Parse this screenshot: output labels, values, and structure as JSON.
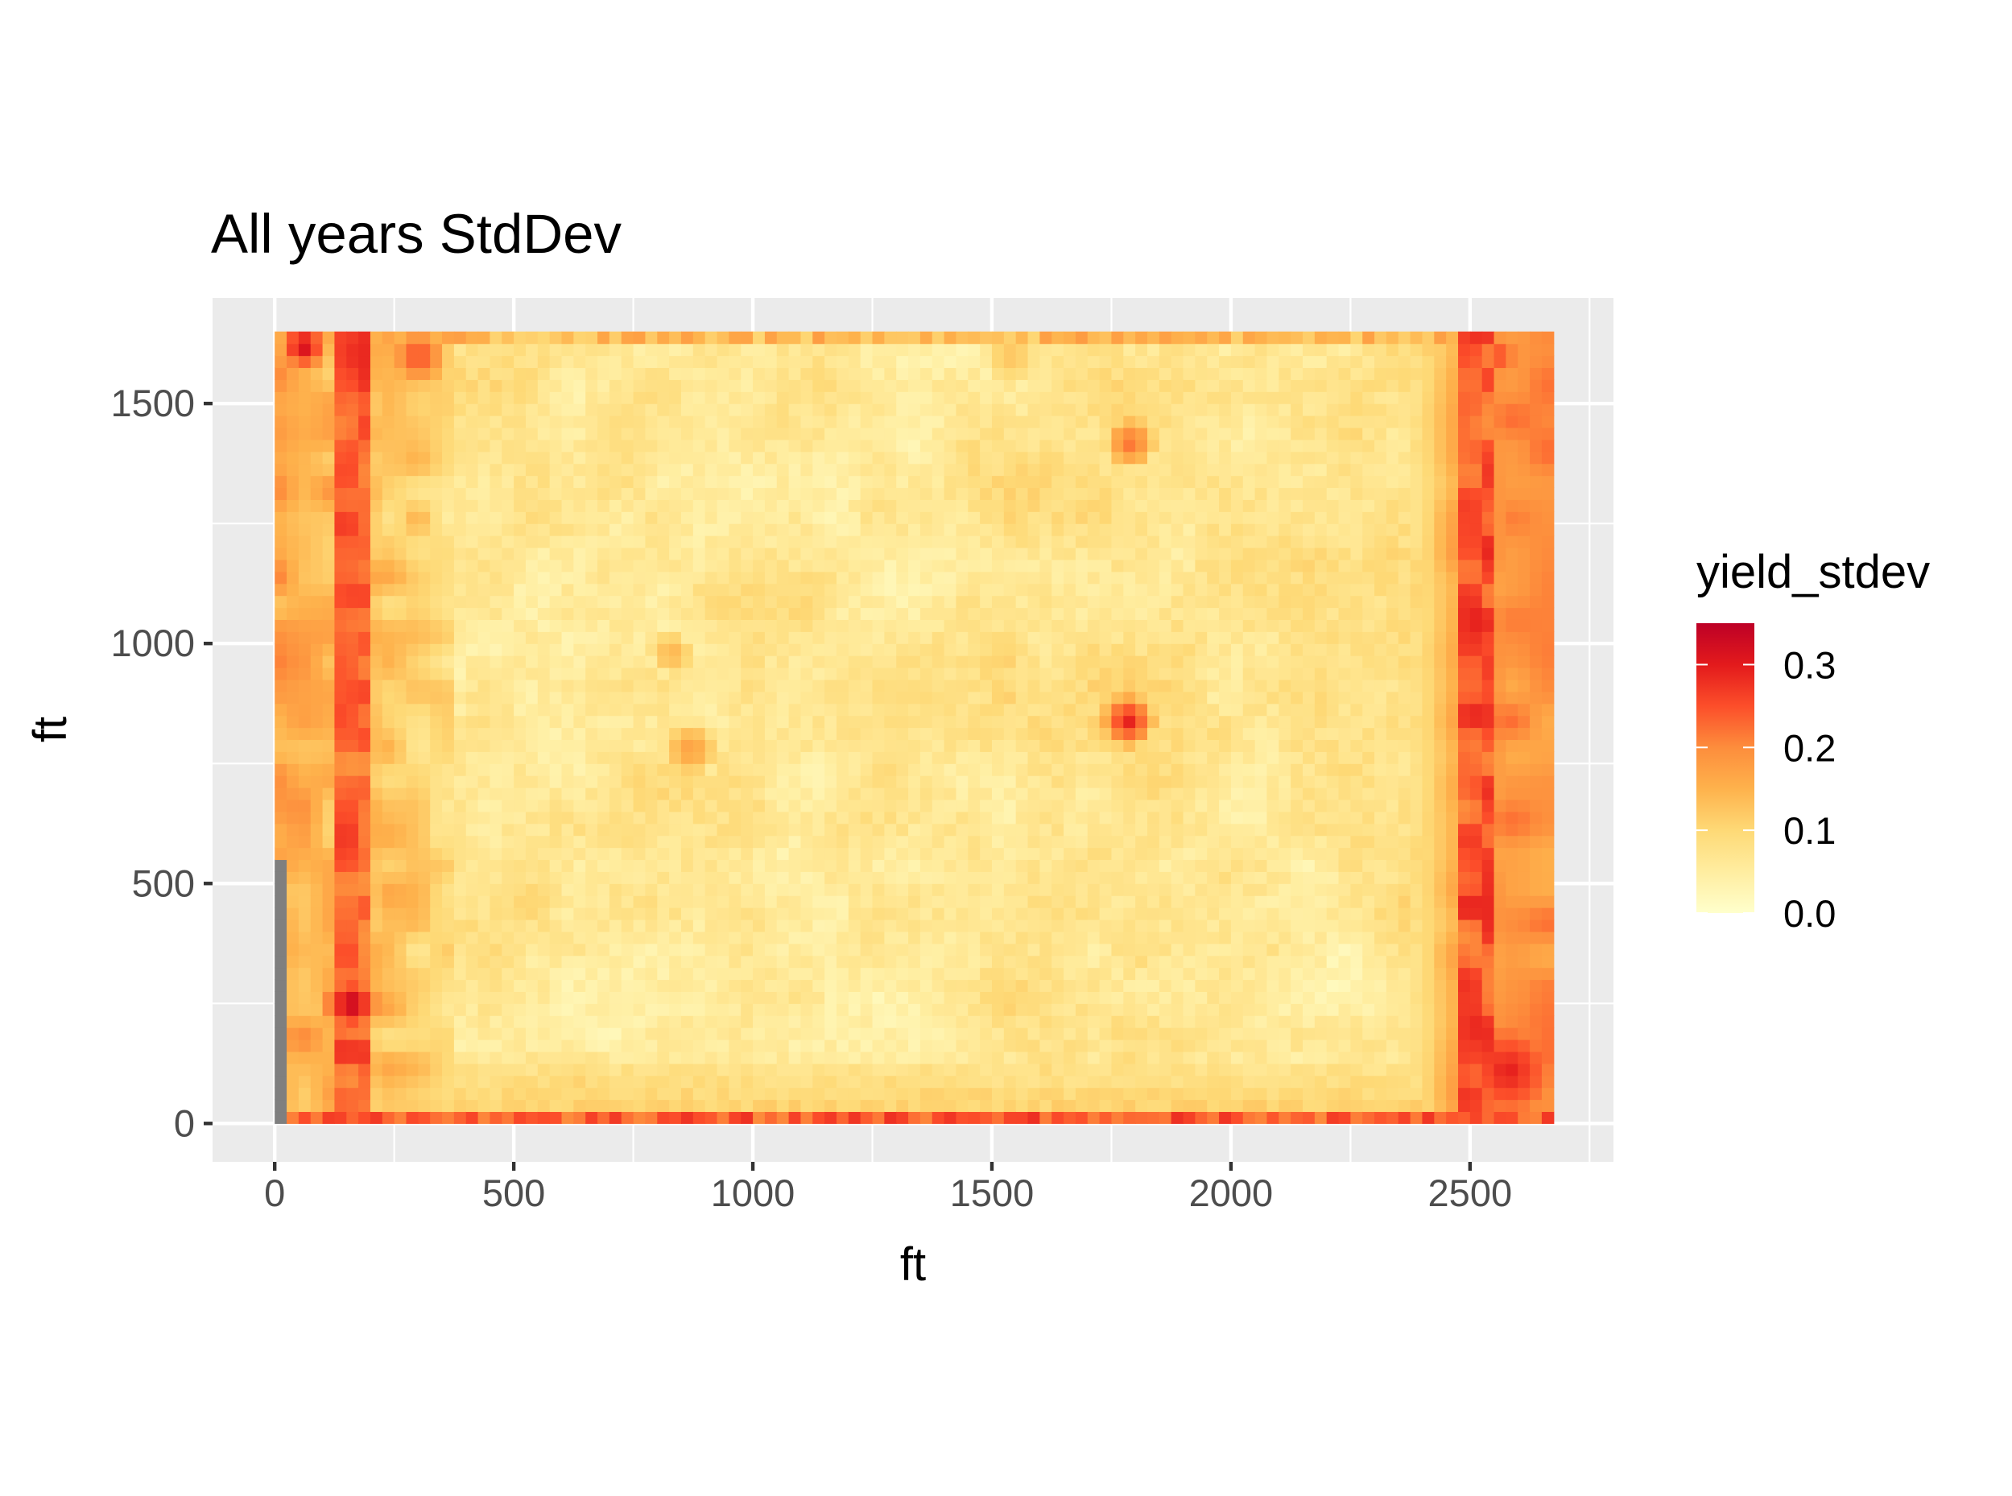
{
  "chart_data": {
    "type": "heatmap",
    "title": "All years StdDev",
    "xlabel": "ft",
    "ylabel": "ft",
    "x_range": [
      0,
      2665
    ],
    "y_range": [
      0,
      1638
    ],
    "xlim": [
      -130,
      2800
    ],
    "ylim": [
      -80,
      1720
    ],
    "x_ticks": [
      0,
      500,
      1000,
      1500,
      2000,
      2500
    ],
    "x_tick_labels": [
      "0",
      "500",
      "1000",
      "1500",
      "2000",
      "2500"
    ],
    "y_ticks": [
      0,
      500,
      1000,
      1500
    ],
    "y_tick_labels": [
      "0",
      "500",
      "1000",
      "1500"
    ],
    "cell_size_ft": 25,
    "grid": true,
    "legend": {
      "title": "yield_stdev",
      "position": "right",
      "limits": [
        0.0,
        0.35
      ],
      "breaks": [
        0.0,
        0.1,
        0.2,
        0.3
      ],
      "break_labels": [
        "0.0",
        "0.1",
        "0.2",
        "0.3"
      ],
      "palette": [
        "#ffffcc",
        "#ffeda0",
        "#fed976",
        "#feb24c",
        "#fd8d3c",
        "#fc4e2a",
        "#e31a1c",
        "#bd0026"
      ]
    },
    "na_color": "#7f7f7f",
    "na_region": {
      "x": [
        0,
        20
      ],
      "y": [
        0,
        560
      ]
    },
    "field_pattern": {
      "interior_mean": 0.07,
      "edge_left_ft": 380,
      "edge_left_value": 0.17,
      "edge_right_start_ft": 2480,
      "edge_right_value": 0.19,
      "edge_bottom_ft": 30,
      "edge_bottom_value": 0.24,
      "edge_top_ft": 25,
      "edge_top_value": 0.14,
      "hotspots": [
        {
          "x": 1785,
          "y": 840,
          "radius": 60,
          "value": 0.3
        },
        {
          "x": 1790,
          "y": 1420,
          "radius": 55,
          "value": 0.23
        },
        {
          "x": 160,
          "y": 250,
          "radius": 70,
          "value": 0.35
        },
        {
          "x": 2580,
          "y": 110,
          "radius": 150,
          "value": 0.3
        },
        {
          "x": 2560,
          "y": 1600,
          "radius": 70,
          "value": 0.26
        },
        {
          "x": 60,
          "y": 1620,
          "radius": 60,
          "value": 0.33
        },
        {
          "x": 300,
          "y": 1600,
          "radius": 70,
          "value": 0.26
        },
        {
          "x": 870,
          "y": 780,
          "radius": 55,
          "value": 0.18
        },
        {
          "x": 830,
          "y": 980,
          "radius": 45,
          "value": 0.15
        },
        {
          "x": 1540,
          "y": 1600,
          "radius": 50,
          "value": 0.13
        }
      ],
      "stripes": [
        {
          "x": 160,
          "width": 45,
          "value": 0.24
        },
        {
          "x": 2510,
          "width": 40,
          "value": 0.25
        }
      ]
    }
  }
}
